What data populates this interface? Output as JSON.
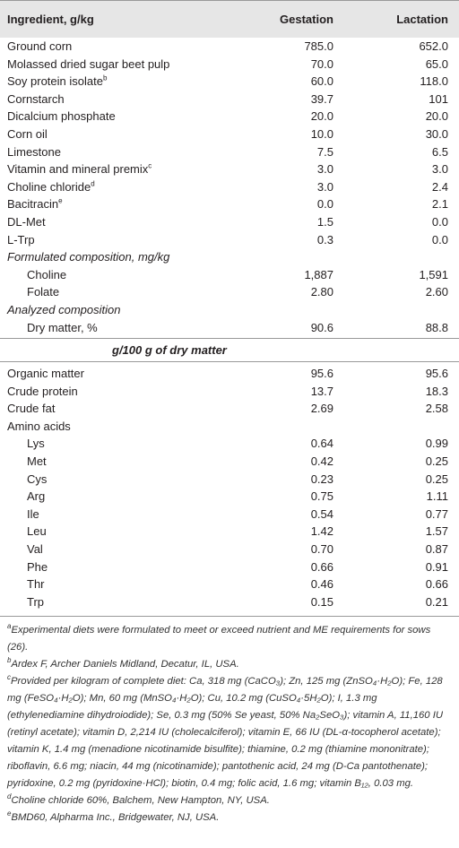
{
  "header": {
    "ingredient": "Ingredient, g/kg",
    "gestation": "Gestation",
    "lactation": "Lactation"
  },
  "ingredients": [
    {
      "ingredient": "Ground corn",
      "gestation": "785.0",
      "lactation": "652.0"
    },
    {
      "ingredient": "Molassed dried sugar beet pulp",
      "gestation": "70.0",
      "lactation": "65.0"
    },
    {
      "ingredient": "Soy protein isolate",
      "sup": "b",
      "gestation": "60.0",
      "lactation": "118.0"
    },
    {
      "ingredient": "Cornstarch",
      "gestation": "39.7",
      "lactation": "101"
    },
    {
      "ingredient": "Dicalcium phosphate",
      "gestation": "20.0",
      "lactation": "20.0"
    },
    {
      "ingredient": "Corn oil",
      "gestation": "10.0",
      "lactation": "30.0"
    },
    {
      "ingredient": "Limestone",
      "gestation": "7.5",
      "lactation": "6.5"
    },
    {
      "ingredient": "Vitamin and mineral premix",
      "sup": "c",
      "gestation": "3.0",
      "lactation": "3.0"
    },
    {
      "ingredient": "Choline chloride",
      "sup": "d",
      "gestation": "3.0",
      "lactation": "2.4"
    },
    {
      "ingredient": "Bacitracin",
      "sup": "e",
      "gestation": "0.0",
      "lactation": "2.1"
    },
    {
      "ingredient": "DL-Met",
      "gestation": "1.5",
      "lactation": "0.0"
    },
    {
      "ingredient": "L-Trp",
      "gestation": "0.3",
      "lactation": "0.0"
    }
  ],
  "formulated": {
    "heading": "Formulated composition, mg/kg",
    "rows": [
      {
        "ingredient": "Choline",
        "gestation": "1,887",
        "lactation": "1,591"
      },
      {
        "ingredient": "Folate",
        "gestation": "2.80",
        "lactation": "2.60"
      }
    ]
  },
  "analyzed": {
    "heading": "Analyzed composition",
    "rows": [
      {
        "ingredient": "Dry matter, %",
        "gestation": "90.6",
        "lactation": "88.8"
      }
    ]
  },
  "dry_matter": {
    "heading": "g/100 g of dry matter",
    "rows": [
      {
        "ingredient": "Organic matter",
        "gestation": "95.6",
        "lactation": "95.6"
      },
      {
        "ingredient": "Crude protein",
        "gestation": "13.7",
        "lactation": "18.3"
      },
      {
        "ingredient": "Crude fat",
        "gestation": "2.69",
        "lactation": "2.58"
      }
    ]
  },
  "amino_acids": {
    "heading": "Amino acids",
    "rows": [
      {
        "ingredient": "Lys",
        "gestation": "0.64",
        "lactation": "0.99"
      },
      {
        "ingredient": "Met",
        "gestation": "0.42",
        "lactation": "0.25"
      },
      {
        "ingredient": "Cys",
        "gestation": "0.23",
        "lactation": "0.25"
      },
      {
        "ingredient": "Arg",
        "gestation": "0.75",
        "lactation": "1.11"
      },
      {
        "ingredient": "Ile",
        "gestation": "0.54",
        "lactation": "0.77"
      },
      {
        "ingredient": "Leu",
        "gestation": "1.42",
        "lactation": "1.57"
      },
      {
        "ingredient": "Val",
        "gestation": "0.70",
        "lactation": "0.87"
      },
      {
        "ingredient": "Phe",
        "gestation": "0.66",
        "lactation": "0.91"
      },
      {
        "ingredient": "Thr",
        "gestation": "0.46",
        "lactation": "0.66"
      },
      {
        "ingredient": "Trp",
        "gestation": "0.15",
        "lactation": "0.21"
      }
    ]
  },
  "footnotes": [
    {
      "mark": "a",
      "text": "Experimental diets were formulated to meet or exceed nutrient and ME requirements for sows (26)."
    },
    {
      "mark": "b",
      "text": "Ardex F, Archer Daniels Midland, Decatur, IL, USA."
    },
    {
      "mark": "c",
      "text": "Provided per kilogram of complete diet: Ca, 318 mg (CaCO₃); Zn, 125 mg (ZnSO₄·H₂O); Fe, 128 mg (FeSO₄·H₂O); Mn, 60 mg (MnSO₄·H₂O); Cu, 10.2 mg (CuSO₄·5H₂O); I, 1.3 mg (ethylenediamine dihydroiodide); Se, 0.3 mg (50% Se yeast, 50% Na₂SeO₃); vitamin A, 11,160 IU (retinyl acetate); vitamin D, 2,214 IU (cholecalciferol); vitamin E, 66 IU (DL-α-tocopherol acetate); vitamin K, 1.4 mg (menadione nicotinamide bisulfite); thiamine, 0.2 mg (thiamine mononitrate); riboflavin, 6.6 mg; niacin, 44 mg (nicotinamide); pantothenic acid, 24 mg (D-Ca pantothenate); pyridoxine, 0.2 mg (pyridoxine·HCl); biotin, 0.4 mg; folic acid, 1.6 mg; vitamin B₁₂, 0.03 mg."
    },
    {
      "mark": "d",
      "text": "Choline chloride 60%, Balchem, New Hampton, NY, USA."
    },
    {
      "mark": "e",
      "text": "BMD60, Alpharma Inc., Bridgewater, NJ, USA."
    }
  ]
}
